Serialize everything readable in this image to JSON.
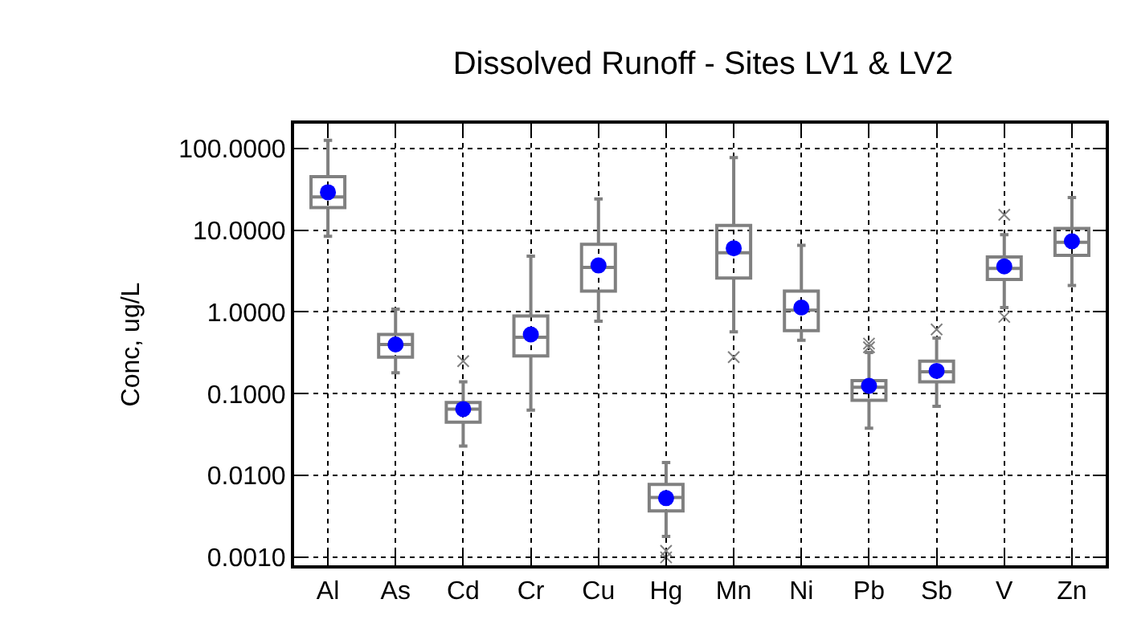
{
  "chart_data": {
    "type": "box",
    "title": "Dissolved Runoff - Sites LV1 & LV2",
    "ylabel": "Conc, ug/L",
    "categories": [
      "Al",
      "As",
      "Cd",
      "Cr",
      "Cu",
      "Hg",
      "Mn",
      "Ni",
      "Pb",
      "Sb",
      "V",
      "Zn"
    ],
    "log": true,
    "grid": true,
    "ylim": [
      0.0008,
      200
    ],
    "yticks": [
      {
        "value": 0.001,
        "label": "0.0010"
      },
      {
        "value": 0.01,
        "label": "0.0100"
      },
      {
        "value": 0.1,
        "label": "0.1000"
      },
      {
        "value": 1,
        "label": "1.0000"
      },
      {
        "value": 10,
        "label": "10.0000"
      },
      {
        "value": 100,
        "label": "100.0000"
      }
    ],
    "series": [
      {
        "color": "#808080",
        "boxes": [
          {
            "low": 8.4,
            "q1": 18.8,
            "median": 25.5,
            "q3": 45,
            "high": 125
          },
          {
            "low": 0.18,
            "q1": 0.28,
            "median": 0.4,
            "q3": 0.53,
            "high": 1.08
          },
          {
            "low": 0.023,
            "q1": 0.045,
            "median": 0.065,
            "q3": 0.078,
            "high": 0.14,
            "outliers": [
              0.25
            ]
          },
          {
            "low": 0.063,
            "q1": 0.29,
            "median": 0.49,
            "q3": 0.89,
            "high": 4.8
          },
          {
            "low": 0.77,
            "q1": 1.8,
            "median": 3.5,
            "q3": 6.7,
            "high": 24
          },
          {
            "low": 0.0018,
            "q1": 0.0037,
            "median": 0.0054,
            "q3": 0.0078,
            "high": 0.0144,
            "outliers": [
              0.0012,
              0.001
            ]
          },
          {
            "low": 0.57,
            "q1": 2.6,
            "median": 5.3,
            "q3": 11.4,
            "high": 77,
            "outliers": [
              0.28
            ]
          },
          {
            "low": 0.45,
            "q1": 0.59,
            "median": 1.05,
            "q3": 1.8,
            "high": 6.5
          },
          {
            "low": 0.038,
            "q1": 0.083,
            "median": 0.12,
            "q3": 0.145,
            "high": 0.32,
            "outliers": [
              0.41,
              0.37
            ]
          },
          {
            "low": 0.07,
            "q1": 0.14,
            "median": 0.185,
            "q3": 0.25,
            "high": 0.48,
            "outliers": [
              0.61
            ]
          },
          {
            "low": 1.13,
            "q1": 2.5,
            "median": 3.4,
            "q3": 4.7,
            "high": 8.8,
            "outliers": [
              15.4,
              0.87
            ]
          },
          {
            "low": 2.1,
            "q1": 4.9,
            "median": 7.1,
            "q3": 10.5,
            "high": 25
          }
        ]
      },
      {
        "type": "scatter",
        "color": "#0000ff",
        "marker": "circle",
        "x": [
          "Al",
          "As",
          "Cd",
          "Cr",
          "Cu",
          "Hg",
          "Mn",
          "Ni",
          "Pb",
          "Sb",
          "V",
          "Zn"
        ],
        "values": [
          29,
          0.4,
          0.065,
          0.53,
          3.7,
          0.0053,
          6.0,
          1.13,
          0.125,
          0.19,
          3.6,
          7.3
        ]
      }
    ]
  }
}
